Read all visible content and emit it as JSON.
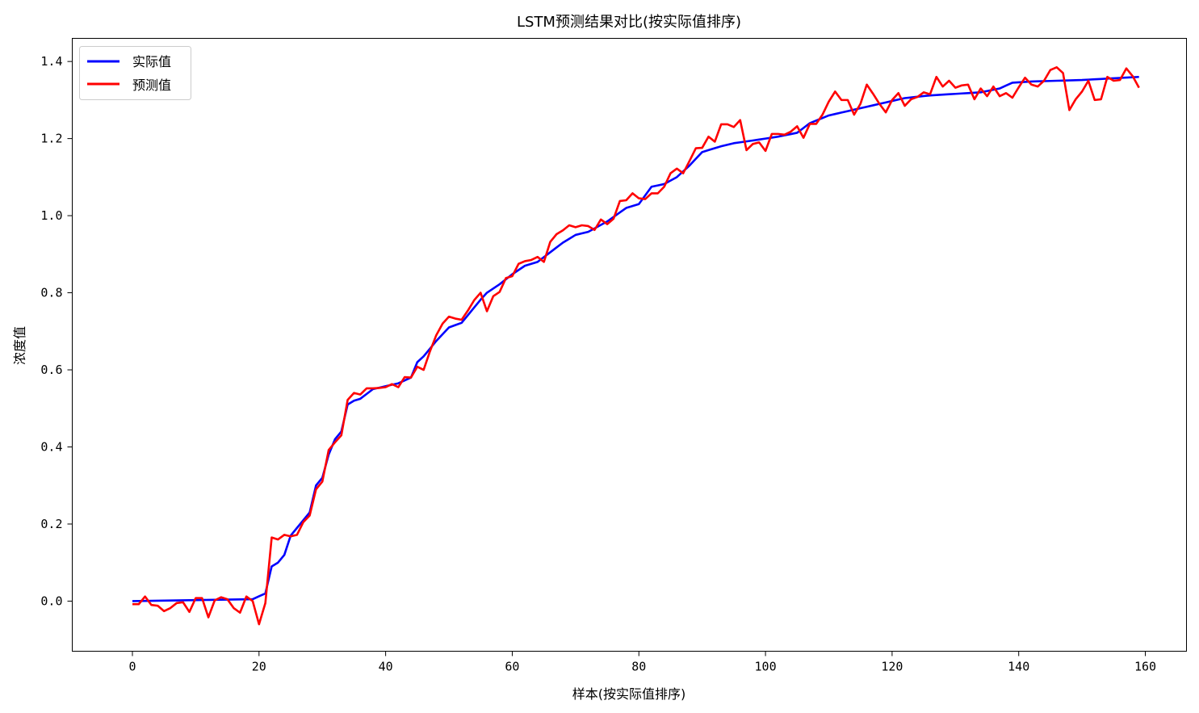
{
  "chart_data": {
    "type": "line",
    "title": "LSTM预测结果对比(按实际值排序)",
    "xlabel": "样本(按实际值排序)",
    "ylabel": "浓度值",
    "xlim": [
      -9.5,
      166.5
    ],
    "ylim": [
      -0.13,
      1.46
    ],
    "xticks": [
      0,
      20,
      40,
      60,
      80,
      100,
      120,
      140,
      160
    ],
    "yticks": [
      0.0,
      0.2,
      0.4,
      0.6,
      0.8,
      1.0,
      1.2,
      1.4
    ],
    "ytick_labels": [
      "0.0",
      "0.2",
      "0.4",
      "0.6",
      "0.8",
      "1.0",
      "1.2",
      "1.4"
    ],
    "legend_position": "upper-left",
    "grid": false,
    "series": [
      {
        "name": "实际值",
        "color": "#0000ff",
        "anchors": [
          [
            0,
            0.0
          ],
          [
            19,
            0.005
          ],
          [
            21,
            0.02
          ],
          [
            22,
            0.09
          ],
          [
            23,
            0.1
          ],
          [
            24,
            0.12
          ],
          [
            25,
            0.17
          ],
          [
            27,
            0.21
          ],
          [
            28,
            0.23
          ],
          [
            29,
            0.3
          ],
          [
            30,
            0.32
          ],
          [
            31,
            0.38
          ],
          [
            32,
            0.42
          ],
          [
            33,
            0.44
          ],
          [
            34,
            0.51
          ],
          [
            35,
            0.52
          ],
          [
            36,
            0.525
          ],
          [
            38,
            0.55
          ],
          [
            42,
            0.565
          ],
          [
            44,
            0.58
          ],
          [
            45,
            0.62
          ],
          [
            46,
            0.635
          ],
          [
            48,
            0.675
          ],
          [
            50,
            0.71
          ],
          [
            52,
            0.722
          ],
          [
            55,
            0.782
          ],
          [
            56,
            0.8
          ],
          [
            58,
            0.822
          ],
          [
            60,
            0.848
          ],
          [
            62,
            0.87
          ],
          [
            64,
            0.88
          ],
          [
            66,
            0.905
          ],
          [
            68,
            0.93
          ],
          [
            70,
            0.95
          ],
          [
            72,
            0.958
          ],
          [
            75,
            0.985
          ],
          [
            78,
            1.02
          ],
          [
            80,
            1.03
          ],
          [
            82,
            1.075
          ],
          [
            84,
            1.082
          ],
          [
            86,
            1.1
          ],
          [
            88,
            1.13
          ],
          [
            90,
            1.165
          ],
          [
            93,
            1.18
          ],
          [
            95,
            1.188
          ],
          [
            98,
            1.195
          ],
          [
            102,
            1.205
          ],
          [
            105,
            1.215
          ],
          [
            107,
            1.24
          ],
          [
            110,
            1.26
          ],
          [
            114,
            1.275
          ],
          [
            118,
            1.29
          ],
          [
            122,
            1.305
          ],
          [
            126,
            1.312
          ],
          [
            130,
            1.316
          ],
          [
            134,
            1.32
          ],
          [
            137,
            1.33
          ],
          [
            139,
            1.345
          ],
          [
            142,
            1.348
          ],
          [
            150,
            1.352
          ],
          [
            159,
            1.36
          ]
        ]
      },
      {
        "name": "预测值",
        "color": "#ff0000",
        "values": [
          -0.008,
          -0.008,
          0.012,
          -0.01,
          -0.012,
          -0.026,
          -0.018,
          -0.005,
          -0.003,
          -0.028,
          0.008,
          0.008,
          -0.042,
          0.002,
          0.01,
          0.005,
          -0.018,
          -0.03,
          0.012,
          0.0,
          -0.06,
          -0.005,
          0.165,
          0.16,
          0.172,
          0.168,
          0.172,
          0.205,
          0.222,
          0.29,
          0.31,
          0.392,
          0.412,
          0.43,
          0.522,
          0.54,
          0.536,
          0.552,
          0.552,
          0.553,
          0.555,
          0.563,
          0.555,
          0.581,
          0.58,
          0.608,
          0.6,
          0.648,
          0.69,
          0.72,
          0.738,
          0.733,
          0.73,
          0.754,
          0.781,
          0.8,
          0.752,
          0.791,
          0.802,
          0.838,
          0.843,
          0.875,
          0.882,
          0.885,
          0.893,
          0.88,
          0.932,
          0.952,
          0.962,
          0.975,
          0.97,
          0.975,
          0.973,
          0.963,
          0.99,
          0.978,
          0.992,
          1.038,
          1.04,
          1.058,
          1.045,
          1.043,
          1.058,
          1.058,
          1.075,
          1.11,
          1.122,
          1.11,
          1.142,
          1.175,
          1.176,
          1.205,
          1.192,
          1.237,
          1.237,
          1.23,
          1.248,
          1.17,
          1.186,
          1.19,
          1.168,
          1.212,
          1.212,
          1.21,
          1.218,
          1.232,
          1.202,
          1.238,
          1.238,
          1.262,
          1.296,
          1.322,
          1.3,
          1.3,
          1.262,
          1.29,
          1.34,
          1.316,
          1.29,
          1.268,
          1.3,
          1.318,
          1.285,
          1.302,
          1.308,
          1.32,
          1.315,
          1.36,
          1.335,
          1.35,
          1.332,
          1.338,
          1.34,
          1.302,
          1.33,
          1.31,
          1.335,
          1.31,
          1.318,
          1.306,
          1.333,
          1.358,
          1.34,
          1.335,
          1.35,
          1.378,
          1.385,
          1.37,
          1.274,
          1.302,
          1.322,
          1.35,
          1.3,
          1.302,
          1.36,
          1.35,
          1.352,
          1.382,
          1.362,
          1.332
        ]
      }
    ]
  }
}
